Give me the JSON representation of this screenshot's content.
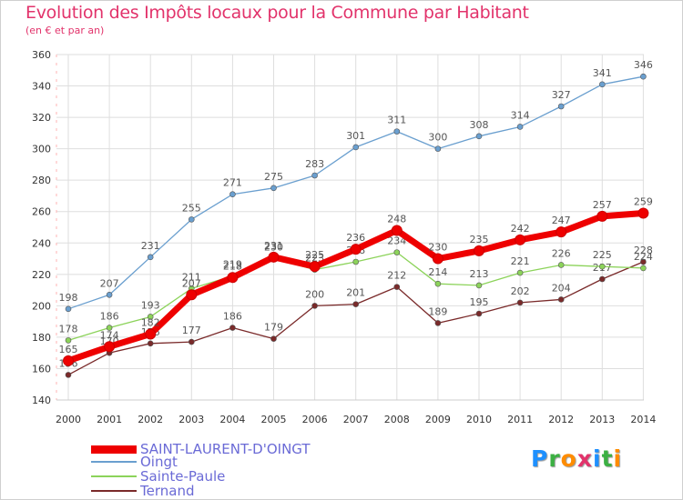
{
  "title": "Evolution des Impôts locaux pour la Commune par Habitant",
  "subtitle": "(en € et par an)",
  "logo": {
    "letters": [
      "P",
      "r",
      "o",
      "x",
      "i",
      "t",
      "i"
    ],
    "colors": [
      "#1e90ff",
      "#3cb043",
      "#ff8c00",
      "#e2336b",
      "#1e90ff",
      "#3cb043",
      "#ff8c00"
    ]
  },
  "chart_data": {
    "type": "line",
    "title": "Evolution des Impôts locaux pour la Commune par Habitant",
    "subtitle": "(en € et par an)",
    "categories": [
      "2000",
      "2001",
      "2002",
      "2003",
      "2004",
      "2005",
      "2006",
      "2007",
      "2008",
      "2009",
      "2010",
      "2011",
      "2012",
      "2013",
      "2014"
    ],
    "ylim": [
      140,
      360
    ],
    "yticks": [
      140,
      160,
      180,
      200,
      220,
      240,
      260,
      280,
      300,
      320,
      340,
      360
    ],
    "grid": true,
    "legend_position": "bottom-left",
    "series": [
      {
        "name": "Ternand",
        "color": "#7a2a2a",
        "values": [
          156,
          170,
          176,
          177,
          186,
          179,
          200,
          201,
          212,
          189,
          195,
          202,
          204,
          217,
          228
        ],
        "labels": [
          "156",
          "170",
          "176",
          "177",
          "186",
          "179",
          "200",
          "201",
          "212",
          "189",
          "195",
          "202",
          "204",
          "217",
          "228"
        ]
      },
      {
        "name": "Sainte-Paule",
        "color": "#8cd35a",
        "values": [
          178,
          186,
          193,
          211,
          219,
          230,
          223,
          228,
          234,
          214,
          213,
          221,
          226,
          225,
          224
        ],
        "labels": [
          "178",
          "186",
          "193",
          "211",
          "219",
          "230",
          "223",
          "228",
          "234",
          "214",
          "213",
          "221",
          "226",
          "225",
          "224"
        ]
      },
      {
        "name": "Oingt",
        "color": "#6a9fcf",
        "values": [
          198,
          207,
          231,
          255,
          271,
          275,
          283,
          301,
          311,
          300,
          308,
          314,
          327,
          341,
          346
        ],
        "labels": [
          "198",
          "207",
          "231",
          "255",
          "271",
          "275",
          "283",
          "301",
          "311",
          "300",
          "308",
          "314",
          "327",
          "341",
          "346"
        ]
      },
      {
        "name": "SAINT-LAURENT-D'OINGT",
        "color": "#ee0000",
        "values": [
          165,
          174,
          182,
          207,
          218,
          231,
          225,
          236,
          248,
          230,
          235,
          242,
          247,
          257,
          259
        ],
        "labels": [
          "165",
          "174",
          "182",
          "207",
          "218",
          "231",
          "225",
          "236",
          "248",
          "230",
          "235",
          "242",
          "247",
          "257",
          "259"
        ]
      }
    ],
    "legend_order": [
      "SAINT-LAURENT-D'OINGT",
      "Oingt",
      "Sainte-Paule",
      "Ternand"
    ]
  }
}
